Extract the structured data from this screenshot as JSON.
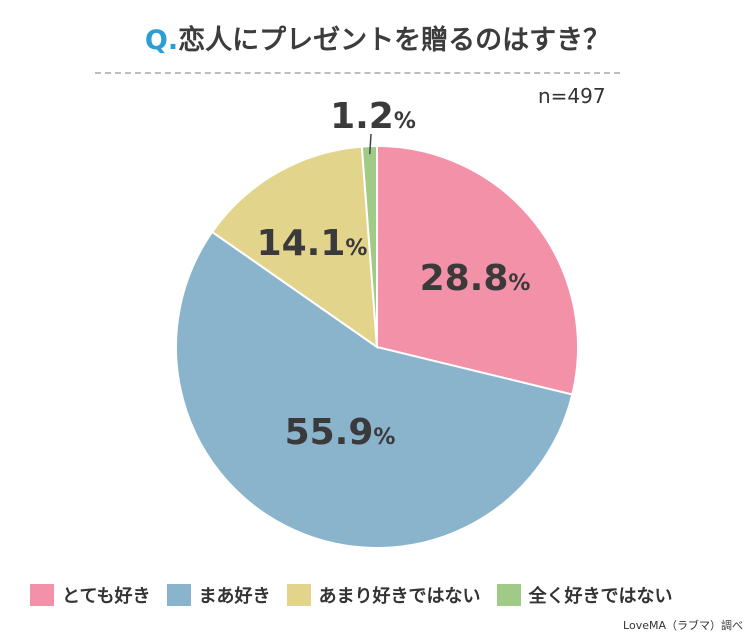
{
  "header": {
    "q_prefix": "Q.",
    "title": "恋人にプレゼントを贈るのはすき？",
    "sample": "n=497"
  },
  "credit": "LoveMA（ラブマ）調べ",
  "colors": {
    "とても好き": "#f291a8",
    "まあ好き": "#89b4cc",
    "あまり好きではない": "#e3d48c",
    "全く好きではない": "#9fcb87"
  },
  "chart_data": {
    "type": "pie",
    "title": "恋人にプレゼントを贈るのはすき？",
    "categories": [
      "とても好き",
      "まあ好き",
      "あまり好きではない",
      "全く好きではない"
    ],
    "values": [
      28.8,
      55.9,
      14.1,
      1.2
    ],
    "value_labels": [
      "28.8",
      "55.9",
      "14.1",
      "1.2"
    ],
    "unit": "%",
    "start_angle": "12 o'clock",
    "direction": "clockwise",
    "legend": "bottom"
  }
}
